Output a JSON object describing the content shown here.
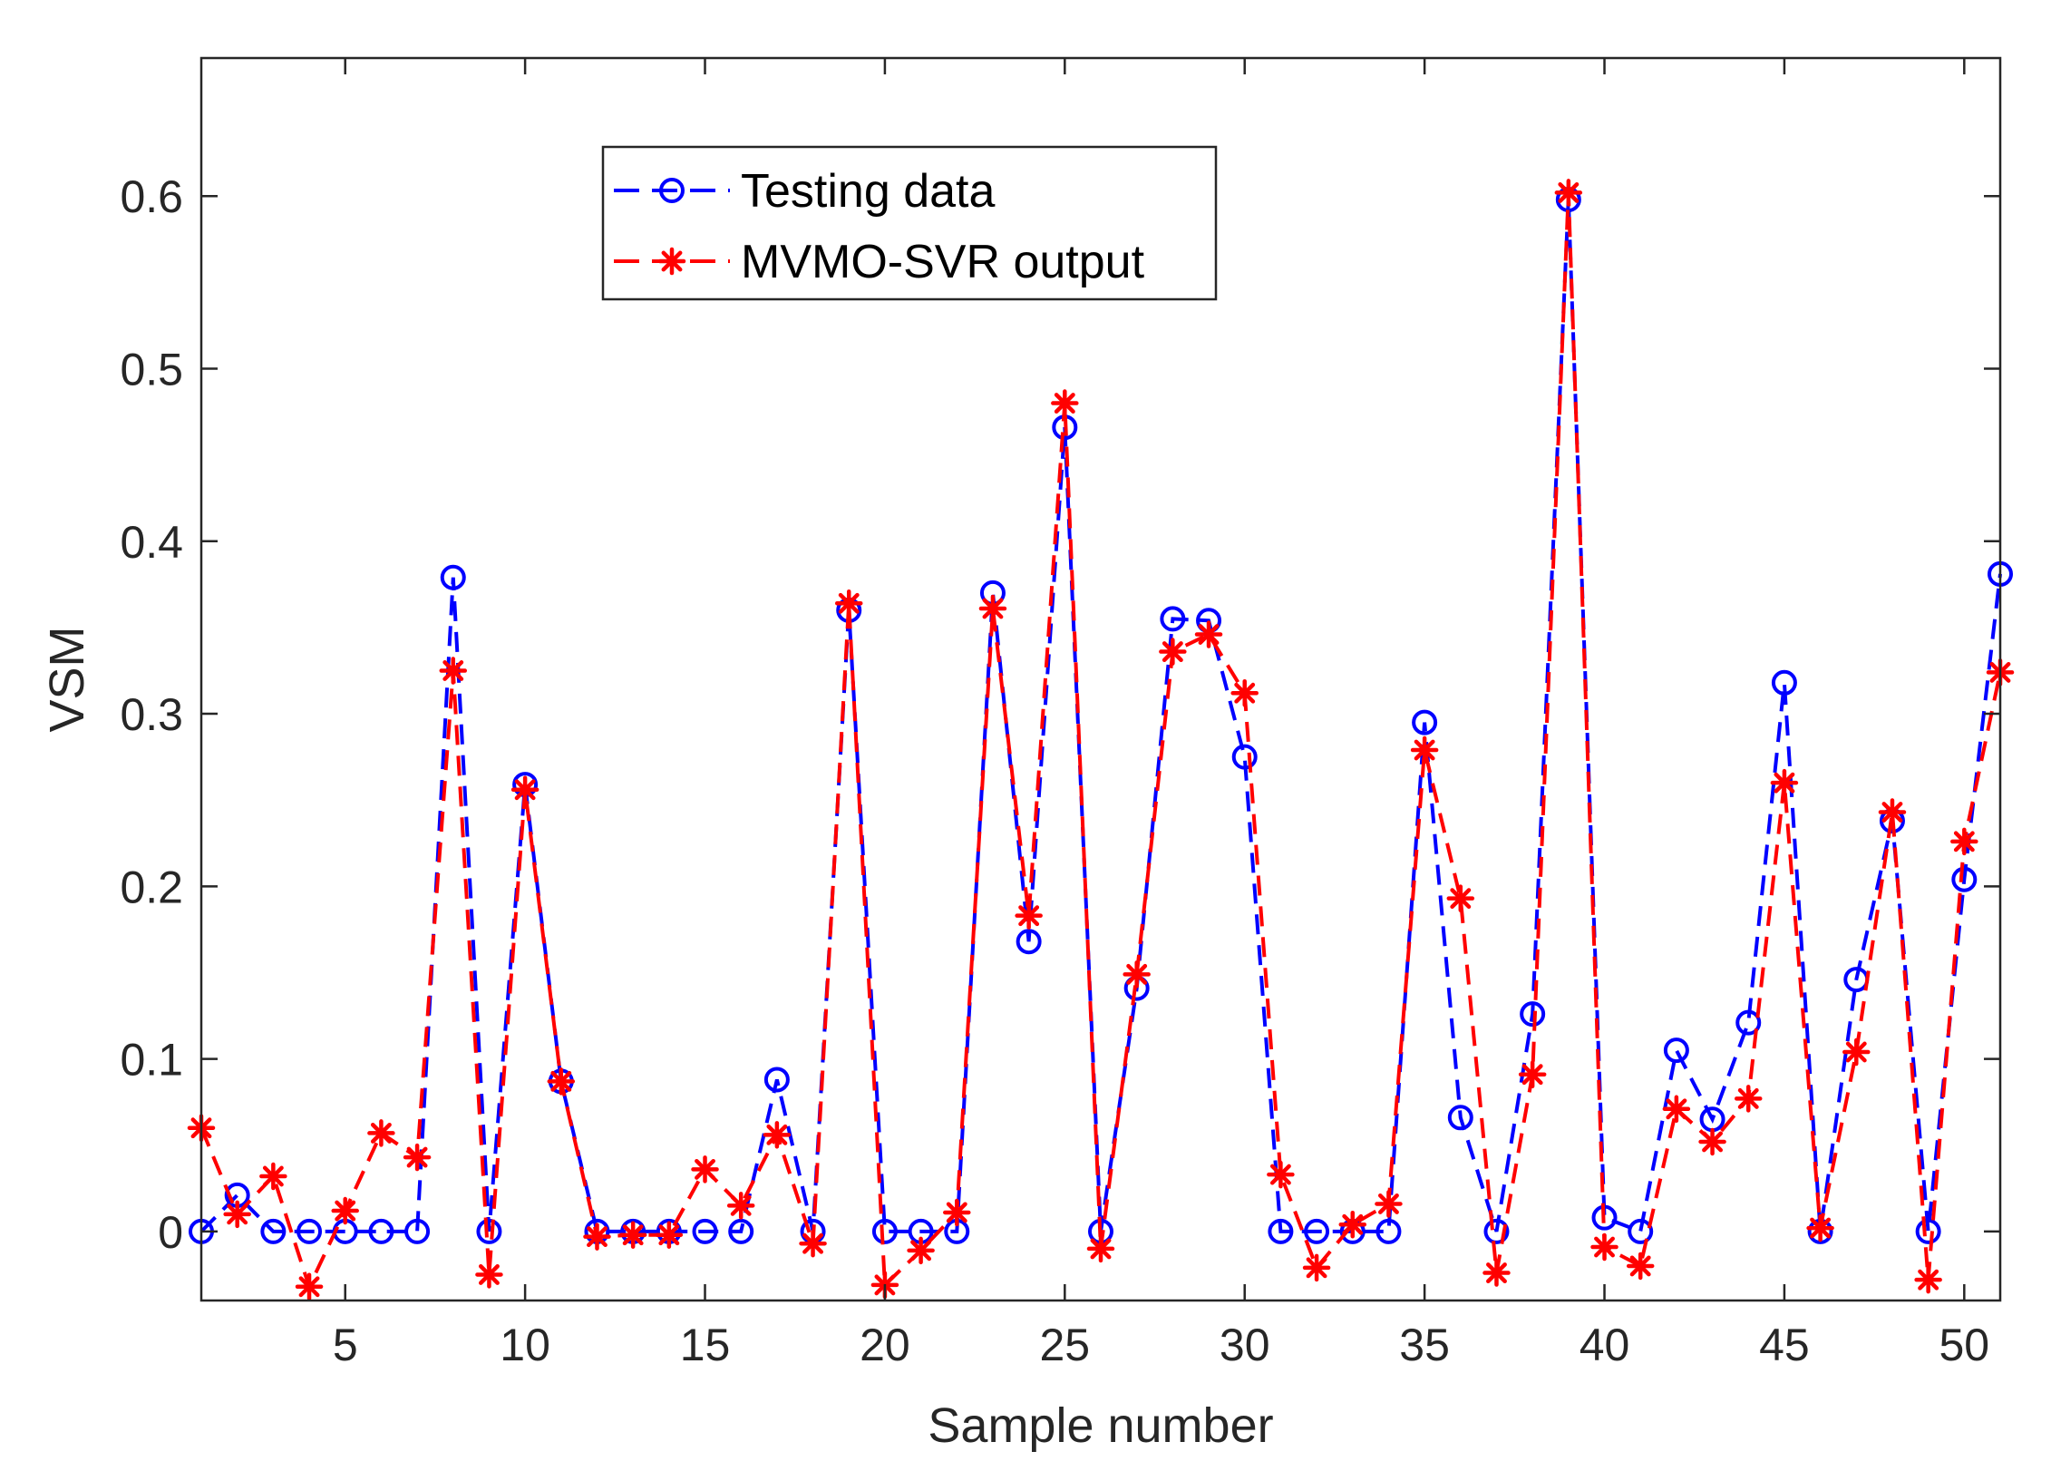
{
  "chart_data": {
    "type": "line",
    "xlabel": "Sample number",
    "ylabel": "VSM",
    "xlim": [
      1,
      51
    ],
    "ylim": [
      -0.04,
      0.68
    ],
    "xticks": [
      5,
      10,
      15,
      20,
      25,
      30,
      35,
      40,
      45,
      50
    ],
    "yticks": [
      0,
      0.1,
      0.2,
      0.3,
      0.4,
      0.5,
      0.6
    ],
    "ytick_labels": [
      "0",
      "0.1",
      "0.2",
      "0.3",
      "0.4",
      "0.5",
      "0.6"
    ],
    "grid": false,
    "legend_position": "top-center",
    "x": [
      1,
      2,
      3,
      4,
      5,
      6,
      7,
      8,
      9,
      10,
      11,
      12,
      13,
      14,
      15,
      16,
      17,
      18,
      19,
      20,
      21,
      22,
      23,
      24,
      25,
      26,
      27,
      28,
      29,
      30,
      31,
      32,
      33,
      34,
      35,
      36,
      37,
      38,
      39,
      40,
      41,
      42,
      43,
      44,
      45,
      46,
      47,
      48,
      49,
      50,
      51
    ],
    "series": [
      {
        "name": "Testing data",
        "color": "#0000ff",
        "marker": "circle",
        "line_style": "dashed",
        "values": [
          0,
          0.021,
          0,
          0,
          0,
          0,
          0,
          0.379,
          0,
          0.259,
          0.087,
          0,
          0,
          0,
          0,
          0,
          0.088,
          0,
          0.36,
          0,
          0,
          0,
          0.37,
          0.168,
          0.466,
          0,
          0.141,
          0.355,
          0.354,
          0.275,
          0,
          0,
          0,
          0,
          0.295,
          0.066,
          0,
          0.126,
          0.598,
          0.008,
          0,
          0.105,
          0.065,
          0.121,
          0.318,
          0,
          0.146,
          0.238,
          0,
          0.204,
          0.381
        ]
      },
      {
        "name": "MVMO-SVR output",
        "color": "#ff0000",
        "marker": "asterisk",
        "line_style": "dashed",
        "values": [
          0.06,
          0.01,
          0.032,
          -0.032,
          0.012,
          0.057,
          0.043,
          0.325,
          -0.025,
          0.256,
          0.087,
          -0.003,
          -0.002,
          -0.002,
          0.036,
          0.015,
          0.056,
          -0.007,
          0.364,
          -0.031,
          -0.011,
          0.011,
          0.361,
          0.183,
          0.48,
          -0.01,
          0.149,
          0.336,
          0.346,
          0.312,
          0.033,
          -0.021,
          0.004,
          0.016,
          0.279,
          0.193,
          -0.024,
          0.091,
          0.602,
          -0.009,
          -0.02,
          0.071,
          0.052,
          0.077,
          0.26,
          0.002,
          0.104,
          0.243,
          -0.028,
          0.226,
          0.324
        ]
      }
    ]
  }
}
